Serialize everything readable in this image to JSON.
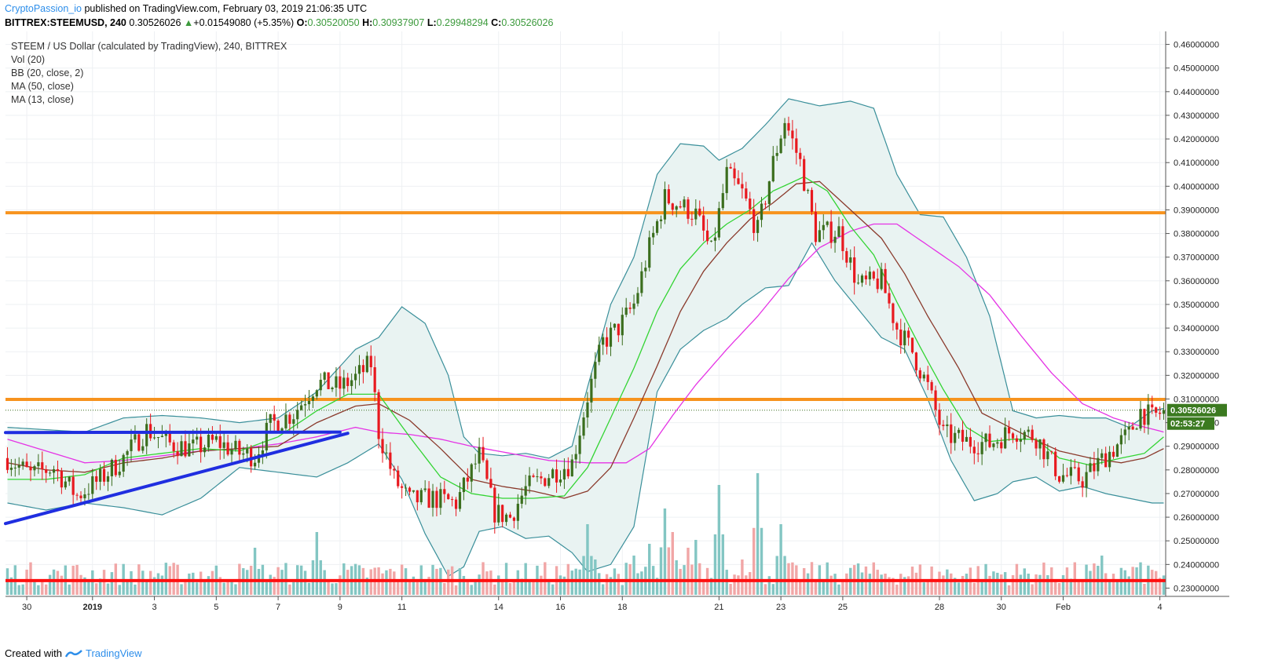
{
  "header": {
    "author": "CryptoPassion_io",
    "published_text": " published on TradingView.com, February 03, 2019 21:06:35 UTC",
    "symbol": "BITTREX:STEEMUSD, 240",
    "last": "0.30526026",
    "change_arrow": "▲",
    "change": "+0.01549080 (+5.35%)",
    "o_label": "O:",
    "o_val": "0.30520050",
    "h_label": "H:",
    "h_val": "0.30937907",
    "l_label": "L:",
    "l_val": "0.29948294",
    "c_label": "C:",
    "c_val": "0.30526026"
  },
  "legend": {
    "title": "STEEM / US Dollar (calculated by TradingView), 240, BITTREX",
    "vol": "Vol (20)",
    "bb": "BB (20, close, 2)",
    "ma50": "MA (50, close)",
    "ma13": "MA (13, close)"
  },
  "price_label": "0.30526026",
  "timer_label": "02:53:27",
  "footer": {
    "created_with": "Created with",
    "brand": "TradingView"
  },
  "colors": {
    "up": "#3b6e1e",
    "down": "#e8191f",
    "vol_up": "#7cc3c0",
    "vol_down": "#f0a1a1",
    "bb": "#3a8f9a",
    "bb_fill": "#e9f3f2",
    "ma50": "#e533e5",
    "ma13": "#8a3a2c",
    "ma_fast": "#33d433",
    "orange": "#f7931e",
    "red_line": "#ff0f0f",
    "trend": "#1f2ee0",
    "price_tag": "#3b7a20"
  },
  "chart_data": {
    "type": "candlestick",
    "ylim": [
      0.2265,
      0.4655
    ],
    "y_ticks": [
      "0.23000000",
      "0.24000000",
      "0.25000000",
      "0.26000000",
      "0.27000000",
      "0.28000000",
      "0.29000000",
      "0.30000000",
      "0.31000000",
      "0.32000000",
      "0.33000000",
      "0.34000000",
      "0.35000000",
      "0.36000000",
      "0.37000000",
      "0.38000000",
      "0.39000000",
      "0.40000000",
      "0.41000000",
      "0.42000000",
      "0.43000000",
      "0.44000000",
      "0.45000000",
      "0.46000000"
    ],
    "x_ticks": [
      "30",
      "2019",
      "3",
      "5",
      "7",
      "9",
      "11",
      "14",
      "16",
      "18",
      "21",
      "23",
      "25",
      "28",
      "30",
      "Feb",
      "4"
    ],
    "x_tick_index": [
      5,
      22,
      38,
      54,
      70,
      86,
      102,
      127,
      143,
      159,
      184,
      200,
      216,
      241,
      257,
      273,
      298
    ],
    "bar_count": 300,
    "anchors": [
      [
        0,
        0.285
      ],
      [
        6,
        0.278
      ],
      [
        12,
        0.281
      ],
      [
        18,
        0.269
      ],
      [
        24,
        0.276
      ],
      [
        30,
        0.285
      ],
      [
        36,
        0.297
      ],
      [
        42,
        0.291
      ],
      [
        48,
        0.289
      ],
      [
        54,
        0.292
      ],
      [
        60,
        0.287
      ],
      [
        64,
        0.286
      ],
      [
        68,
        0.299
      ],
      [
        74,
        0.304
      ],
      [
        80,
        0.317
      ],
      [
        86,
        0.315
      ],
      [
        90,
        0.319
      ],
      [
        94,
        0.325
      ],
      [
        96,
        0.296
      ],
      [
        100,
        0.276
      ],
      [
        104,
        0.267
      ],
      [
        110,
        0.268
      ],
      [
        116,
        0.266
      ],
      [
        122,
        0.286
      ],
      [
        126,
        0.262
      ],
      [
        130,
        0.26
      ],
      [
        134,
        0.272
      ],
      [
        140,
        0.278
      ],
      [
        146,
        0.283
      ],
      [
        150,
        0.311
      ],
      [
        154,
        0.334
      ],
      [
        158,
        0.34
      ],
      [
        162,
        0.35
      ],
      [
        166,
        0.374
      ],
      [
        170,
        0.395
      ],
      [
        174,
        0.392
      ],
      [
        178,
        0.388
      ],
      [
        182,
        0.372
      ],
      [
        186,
        0.405
      ],
      [
        190,
        0.397
      ],
      [
        194,
        0.381
      ],
      [
        198,
        0.41
      ],
      [
        201,
        0.428
      ],
      [
        205,
        0.41
      ],
      [
        209,
        0.38
      ],
      [
        215,
        0.381
      ],
      [
        220,
        0.358
      ],
      [
        226,
        0.36
      ],
      [
        230,
        0.34
      ],
      [
        234,
        0.33
      ],
      [
        238,
        0.315
      ],
      [
        242,
        0.295
      ],
      [
        248,
        0.292
      ],
      [
        254,
        0.291
      ],
      [
        260,
        0.297
      ],
      [
        266,
        0.294
      ],
      [
        272,
        0.278
      ],
      [
        278,
        0.276
      ],
      [
        284,
        0.286
      ],
      [
        290,
        0.295
      ],
      [
        293,
        0.305
      ],
      [
        296,
        0.302
      ],
      [
        299,
        0.305
      ]
    ],
    "bb_upper": [
      [
        0,
        0.298
      ],
      [
        10,
        0.297
      ],
      [
        20,
        0.296
      ],
      [
        30,
        0.302
      ],
      [
        40,
        0.303
      ],
      [
        50,
        0.302
      ],
      [
        60,
        0.3
      ],
      [
        70,
        0.302
      ],
      [
        80,
        0.313
      ],
      [
        90,
        0.331
      ],
      [
        96,
        0.336
      ],
      [
        102,
        0.349
      ],
      [
        108,
        0.342
      ],
      [
        114,
        0.32
      ],
      [
        118,
        0.294
      ],
      [
        122,
        0.287
      ],
      [
        128,
        0.286
      ],
      [
        134,
        0.287
      ],
      [
        140,
        0.285
      ],
      [
        146,
        0.29
      ],
      [
        150,
        0.315
      ],
      [
        156,
        0.35
      ],
      [
        162,
        0.37
      ],
      [
        168,
        0.405
      ],
      [
        174,
        0.418
      ],
      [
        180,
        0.417
      ],
      [
        184,
        0.411
      ],
      [
        190,
        0.416
      ],
      [
        196,
        0.426
      ],
      [
        202,
        0.437
      ],
      [
        210,
        0.434
      ],
      [
        218,
        0.436
      ],
      [
        224,
        0.433
      ],
      [
        230,
        0.405
      ],
      [
        236,
        0.388
      ],
      [
        242,
        0.387
      ],
      [
        248,
        0.37
      ],
      [
        254,
        0.345
      ],
      [
        260,
        0.305
      ],
      [
        266,
        0.302
      ],
      [
        272,
        0.303
      ],
      [
        278,
        0.302
      ],
      [
        284,
        0.302
      ],
      [
        290,
        0.298
      ],
      [
        296,
        0.305
      ],
      [
        299,
        0.306
      ]
    ],
    "bb_lower": [
      [
        0,
        0.266
      ],
      [
        10,
        0.263
      ],
      [
        20,
        0.266
      ],
      [
        30,
        0.264
      ],
      [
        40,
        0.261
      ],
      [
        50,
        0.268
      ],
      [
        60,
        0.281
      ],
      [
        70,
        0.279
      ],
      [
        80,
        0.277
      ],
      [
        88,
        0.283
      ],
      [
        96,
        0.291
      ],
      [
        102,
        0.276
      ],
      [
        108,
        0.253
      ],
      [
        114,
        0.235
      ],
      [
        118,
        0.239
      ],
      [
        122,
        0.254
      ],
      [
        128,
        0.256
      ],
      [
        134,
        0.251
      ],
      [
        140,
        0.252
      ],
      [
        146,
        0.245
      ],
      [
        150,
        0.237
      ],
      [
        156,
        0.24
      ],
      [
        162,
        0.256
      ],
      [
        168,
        0.313
      ],
      [
        174,
        0.331
      ],
      [
        180,
        0.339
      ],
      [
        186,
        0.344
      ],
      [
        190,
        0.35
      ],
      [
        196,
        0.357
      ],
      [
        202,
        0.358
      ],
      [
        208,
        0.376
      ],
      [
        214,
        0.36
      ],
      [
        220,
        0.348
      ],
      [
        226,
        0.336
      ],
      [
        232,
        0.331
      ],
      [
        238,
        0.31
      ],
      [
        244,
        0.284
      ],
      [
        250,
        0.267
      ],
      [
        256,
        0.27
      ],
      [
        260,
        0.275
      ],
      [
        266,
        0.277
      ],
      [
        272,
        0.271
      ],
      [
        278,
        0.273
      ],
      [
        284,
        0.27
      ],
      [
        290,
        0.268
      ],
      [
        296,
        0.266
      ],
      [
        299,
        0.266
      ]
    ],
    "ma50": [
      [
        0,
        0.293
      ],
      [
        10,
        0.288
      ],
      [
        20,
        0.283
      ],
      [
        30,
        0.284
      ],
      [
        40,
        0.286
      ],
      [
        50,
        0.288
      ],
      [
        60,
        0.289
      ],
      [
        70,
        0.291
      ],
      [
        80,
        0.294
      ],
      [
        90,
        0.298
      ],
      [
        96,
        0.296
      ],
      [
        104,
        0.295
      ],
      [
        112,
        0.293
      ],
      [
        120,
        0.29
      ],
      [
        130,
        0.287
      ],
      [
        140,
        0.284
      ],
      [
        150,
        0.283
      ],
      [
        160,
        0.283
      ],
      [
        166,
        0.289
      ],
      [
        172,
        0.303
      ],
      [
        178,
        0.316
      ],
      [
        186,
        0.331
      ],
      [
        194,
        0.345
      ],
      [
        202,
        0.361
      ],
      [
        210,
        0.374
      ],
      [
        218,
        0.381
      ],
      [
        224,
        0.384
      ],
      [
        230,
        0.384
      ],
      [
        238,
        0.375
      ],
      [
        246,
        0.366
      ],
      [
        254,
        0.354
      ],
      [
        262,
        0.337
      ],
      [
        270,
        0.321
      ],
      [
        278,
        0.308
      ],
      [
        286,
        0.302
      ],
      [
        292,
        0.299
      ],
      [
        299,
        0.296
      ]
    ],
    "ma13": [
      [
        0,
        0.283
      ],
      [
        10,
        0.28
      ],
      [
        20,
        0.279
      ],
      [
        30,
        0.283
      ],
      [
        40,
        0.285
      ],
      [
        50,
        0.288
      ],
      [
        60,
        0.289
      ],
      [
        70,
        0.29
      ],
      [
        80,
        0.3
      ],
      [
        90,
        0.307
      ],
      [
        96,
        0.308
      ],
      [
        104,
        0.301
      ],
      [
        112,
        0.289
      ],
      [
        120,
        0.276
      ],
      [
        128,
        0.273
      ],
      [
        136,
        0.271
      ],
      [
        144,
        0.268
      ],
      [
        150,
        0.271
      ],
      [
        156,
        0.281
      ],
      [
        162,
        0.302
      ],
      [
        168,
        0.324
      ],
      [
        174,
        0.347
      ],
      [
        180,
        0.364
      ],
      [
        186,
        0.376
      ],
      [
        192,
        0.386
      ],
      [
        198,
        0.393
      ],
      [
        204,
        0.401
      ],
      [
        210,
        0.402
      ],
      [
        218,
        0.39
      ],
      [
        226,
        0.378
      ],
      [
        232,
        0.363
      ],
      [
        238,
        0.345
      ],
      [
        246,
        0.323
      ],
      [
        252,
        0.304
      ],
      [
        258,
        0.299
      ],
      [
        264,
        0.294
      ],
      [
        272,
        0.288
      ],
      [
        280,
        0.285
      ],
      [
        288,
        0.283
      ],
      [
        294,
        0.285
      ],
      [
        299,
        0.289
      ]
    ],
    "ma_fast": [
      [
        0,
        0.276
      ],
      [
        10,
        0.276
      ],
      [
        20,
        0.278
      ],
      [
        30,
        0.285
      ],
      [
        40,
        0.287
      ],
      [
        50,
        0.289
      ],
      [
        60,
        0.288
      ],
      [
        70,
        0.294
      ],
      [
        80,
        0.305
      ],
      [
        88,
        0.312
      ],
      [
        96,
        0.312
      ],
      [
        104,
        0.294
      ],
      [
        112,
        0.277
      ],
      [
        120,
        0.27
      ],
      [
        128,
        0.268
      ],
      [
        136,
        0.268
      ],
      [
        144,
        0.269
      ],
      [
        150,
        0.281
      ],
      [
        156,
        0.302
      ],
      [
        162,
        0.323
      ],
      [
        168,
        0.347
      ],
      [
        174,
        0.365
      ],
      [
        180,
        0.376
      ],
      [
        186,
        0.384
      ],
      [
        192,
        0.39
      ],
      [
        198,
        0.398
      ],
      [
        206,
        0.404
      ],
      [
        212,
        0.398
      ],
      [
        218,
        0.383
      ],
      [
        224,
        0.371
      ],
      [
        230,
        0.351
      ],
      [
        236,
        0.332
      ],
      [
        242,
        0.314
      ],
      [
        248,
        0.298
      ],
      [
        254,
        0.292
      ],
      [
        260,
        0.293
      ],
      [
        266,
        0.293
      ],
      [
        272,
        0.285
      ],
      [
        280,
        0.282
      ],
      [
        288,
        0.285
      ],
      [
        294,
        0.287
      ],
      [
        299,
        0.294
      ]
    ],
    "volume_peaks": [
      [
        64,
        0.6
      ],
      [
        80,
        0.8
      ],
      [
        96,
        0.35
      ],
      [
        150,
        0.9
      ],
      [
        152,
        0.45
      ],
      [
        162,
        0.5
      ],
      [
        166,
        0.65
      ],
      [
        170,
        1.1
      ],
      [
        172,
        0.8
      ],
      [
        176,
        0.6
      ],
      [
        178,
        0.7
      ],
      [
        184,
        1.4
      ],
      [
        190,
        0.45
      ],
      [
        194,
        1.55
      ],
      [
        200,
        0.9
      ],
      [
        220,
        0.4
      ],
      [
        270,
        0.35
      ],
      [
        283,
        0.5
      ],
      [
        292,
        0.35
      ]
    ],
    "hlines": {
      "orange_top": 0.3888,
      "orange_mid": 0.3098,
      "red_bottom": 0.2332,
      "dotted_last": 0.30526
    },
    "trend_lines": [
      [
        [
          0,
          0.2573
        ],
        [
          88,
          0.2955
        ]
      ],
      [
        [
          0,
          0.2958
        ],
        [
          86,
          0.296
        ]
      ]
    ],
    "last_price": 0.30526026
  }
}
